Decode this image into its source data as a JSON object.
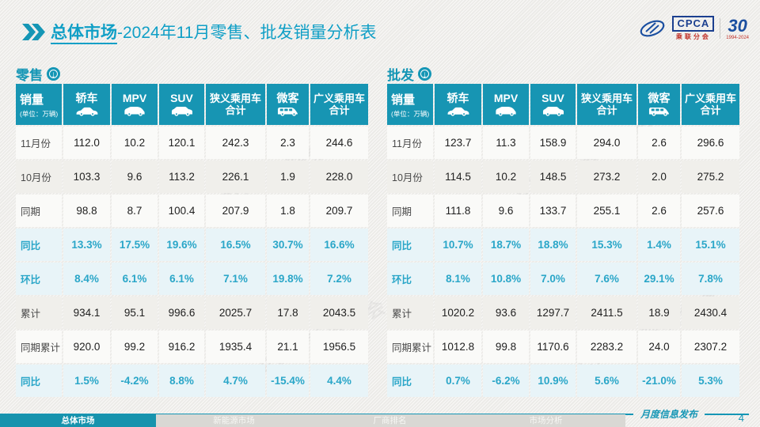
{
  "title": {
    "highlight": "总体市场",
    "rest": "-2024年11月零售、批发销量分析表"
  },
  "logo": {
    "name": "CPCA",
    "subtitle": "乘联分会",
    "anniversary": "30",
    "anniversary_sub": "1994-2024"
  },
  "watermark_text": "CPCA 乘联分会",
  "sales_header": {
    "label": "销量",
    "unit": "(单位：万辆)"
  },
  "columns": [
    {
      "label": "轿车",
      "icon": "sedan-icon"
    },
    {
      "label": "MPV",
      "icon": "mpv-icon"
    },
    {
      "label": "SUV",
      "icon": "suv-icon"
    },
    {
      "lines": [
        "狭义乘用车",
        "合计"
      ]
    },
    {
      "label": "微客",
      "icon": "minibus-icon"
    },
    {
      "lines": [
        "广义乘用车",
        "合计"
      ]
    }
  ],
  "retail": {
    "section_label": "零售",
    "rows": [
      {
        "label": "11月份",
        "style": "plain",
        "values": [
          "112.0",
          "10.2",
          "120.1",
          "242.3",
          "2.3",
          "244.6"
        ]
      },
      {
        "label": "10月份",
        "style": "alt",
        "values": [
          "103.3",
          "9.6",
          "113.2",
          "226.1",
          "1.9",
          "228.0"
        ]
      },
      {
        "label": "同期",
        "style": "plain",
        "values": [
          "98.8",
          "8.7",
          "100.4",
          "207.9",
          "1.8",
          "209.7"
        ]
      },
      {
        "label": "同比",
        "style": "percent",
        "values": [
          "13.3%",
          "17.5%",
          "19.6%",
          "16.5%",
          "30.7%",
          "16.6%"
        ]
      },
      {
        "label": "环比",
        "style": "percent",
        "values": [
          "8.4%",
          "6.1%",
          "6.1%",
          "7.1%",
          "19.8%",
          "7.2%"
        ]
      },
      {
        "label": "累计",
        "style": "alt",
        "values": [
          "934.1",
          "95.1",
          "996.6",
          "2025.7",
          "17.8",
          "2043.5"
        ]
      },
      {
        "label": "同期累计",
        "style": "plain",
        "values": [
          "920.0",
          "99.2",
          "916.2",
          "1935.4",
          "21.1",
          "1956.5"
        ]
      },
      {
        "label": "同比",
        "style": "percent",
        "values": [
          "1.5%",
          "-4.2%",
          "8.8%",
          "4.7%",
          "-15.4%",
          "4.4%"
        ]
      }
    ]
  },
  "wholesale": {
    "section_label": "批发",
    "rows": [
      {
        "label": "11月份",
        "style": "plain",
        "values": [
          "123.7",
          "11.3",
          "158.9",
          "294.0",
          "2.6",
          "296.6"
        ]
      },
      {
        "label": "10月份",
        "style": "alt",
        "values": [
          "114.5",
          "10.2",
          "148.5",
          "273.2",
          "2.0",
          "275.2"
        ]
      },
      {
        "label": "同期",
        "style": "plain",
        "values": [
          "111.8",
          "9.6",
          "133.7",
          "255.1",
          "2.6",
          "257.6"
        ]
      },
      {
        "label": "同比",
        "style": "percent",
        "values": [
          "10.7%",
          "18.7%",
          "18.8%",
          "15.3%",
          "1.4%",
          "15.1%"
        ]
      },
      {
        "label": "环比",
        "style": "percent",
        "values": [
          "8.1%",
          "10.8%",
          "7.0%",
          "7.6%",
          "29.1%",
          "7.8%"
        ]
      },
      {
        "label": "累计",
        "style": "alt",
        "values": [
          "1020.2",
          "93.6",
          "1297.7",
          "2411.5",
          "18.9",
          "2430.4"
        ]
      },
      {
        "label": "同期累计",
        "style": "plain",
        "values": [
          "1012.8",
          "99.8",
          "1170.6",
          "2283.2",
          "24.0",
          "2307.2"
        ]
      },
      {
        "label": "同比",
        "style": "percent",
        "values": [
          "0.7%",
          "-6.2%",
          "10.9%",
          "5.6%",
          "-21.0%",
          "5.3%"
        ]
      }
    ]
  },
  "footer": {
    "tabs": [
      {
        "label": "总体市场",
        "active": true
      },
      {
        "label": "新能源市场",
        "active": false
      },
      {
        "label": "厂商排名",
        "active": false
      },
      {
        "label": "市场分析",
        "active": false
      }
    ],
    "note": "月度信息发布",
    "page": "4"
  },
  "colors": {
    "teal": "#1795b3",
    "title": "#109fc6",
    "percent_text": "#2aa6c8",
    "percent_bg": "#e8f4f8"
  }
}
